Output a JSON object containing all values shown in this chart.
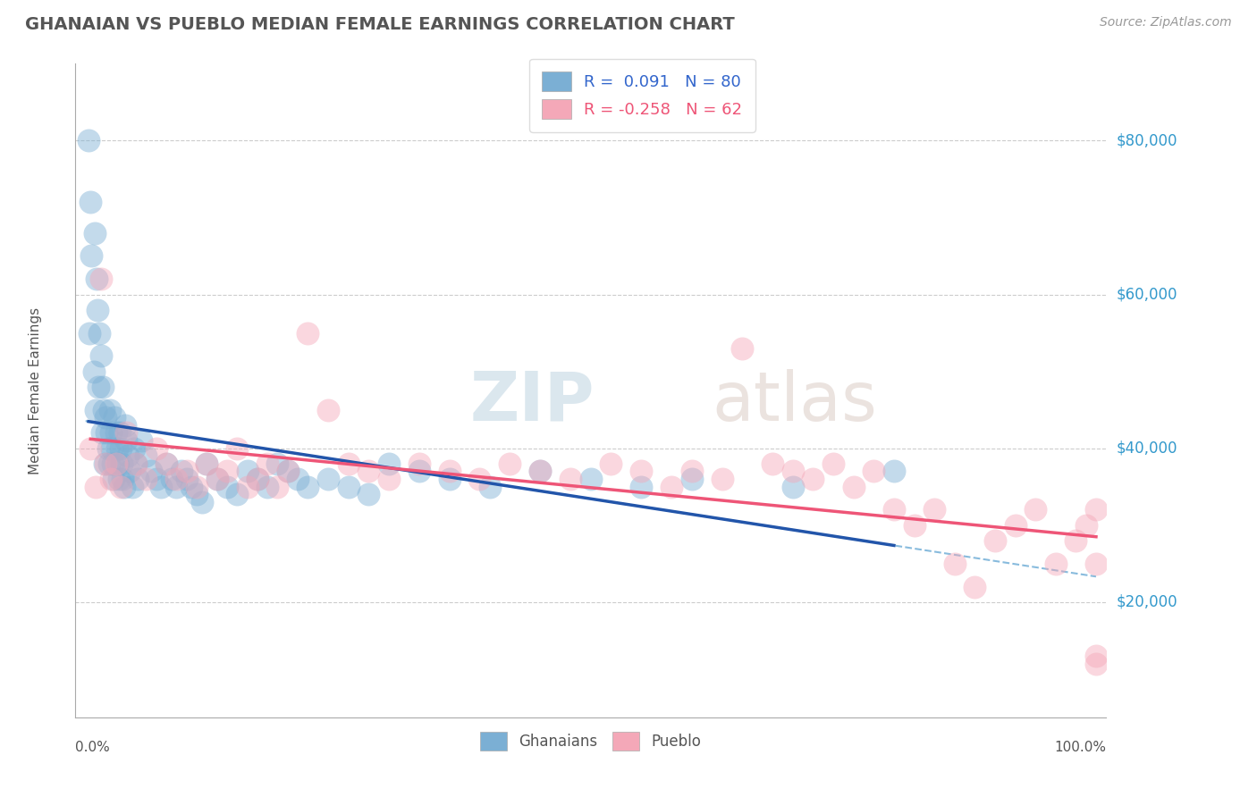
{
  "title": "GHANAIAN VS PUEBLO MEDIAN FEMALE EARNINGS CORRELATION CHART",
  "source": "Source: ZipAtlas.com",
  "ylabel": "Median Female Earnings",
  "y_ticks": [
    20000,
    40000,
    60000,
    80000
  ],
  "y_tick_labels": [
    "$20,000",
    "$40,000",
    "$60,000",
    "$80,000"
  ],
  "y_lim": [
    5000,
    90000
  ],
  "x_lim": [
    0,
    100
  ],
  "ghanaian_R": 0.091,
  "ghanaian_N": 80,
  "pueblo_R": -0.258,
  "pueblo_N": 62,
  "ghanaian_color": "#7BAFD4",
  "pueblo_color": "#F4A8B8",
  "ghanaian_line_color": "#2255AA",
  "pueblo_line_color": "#EE5577",
  "dashed_line_color": "#88BBDD",
  "background_color": "#FFFFFF",
  "title_color": "#555555",
  "ghanaian_x": [
    0.3,
    0.4,
    0.5,
    0.6,
    0.8,
    0.9,
    1.0,
    1.1,
    1.2,
    1.3,
    1.4,
    1.5,
    1.6,
    1.7,
    1.8,
    1.9,
    2.0,
    2.1,
    2.2,
    2.3,
    2.4,
    2.5,
    2.6,
    2.7,
    2.8,
    2.9,
    3.0,
    3.1,
    3.2,
    3.3,
    3.4,
    3.5,
    3.6,
    3.7,
    3.8,
    3.9,
    4.0,
    4.2,
    4.4,
    4.6,
    4.8,
    5.0,
    5.2,
    5.5,
    6.0,
    6.5,
    7.0,
    7.5,
    8.0,
    8.5,
    9.0,
    9.5,
    10.0,
    10.5,
    11.0,
    11.5,
    12.0,
    13.0,
    14.0,
    15.0,
    16.0,
    17.0,
    18.0,
    19.0,
    20.0,
    21.0,
    22.0,
    24.0,
    26.0,
    28.0,
    30.0,
    33.0,
    36.0,
    40.0,
    45.0,
    50.0,
    55.0,
    60.0,
    70.0,
    80.0
  ],
  "ghanaian_y": [
    80000,
    55000,
    72000,
    65000,
    50000,
    68000,
    45000,
    62000,
    58000,
    48000,
    55000,
    52000,
    42000,
    48000,
    45000,
    38000,
    44000,
    42000,
    40000,
    38000,
    45000,
    42000,
    40000,
    38000,
    36000,
    44000,
    42000,
    40000,
    38000,
    36000,
    42000,
    40000,
    38000,
    36000,
    35000,
    43000,
    41000,
    39000,
    37000,
    35000,
    40000,
    38000,
    36000,
    41000,
    39000,
    37000,
    36000,
    35000,
    38000,
    36000,
    35000,
    37000,
    36000,
    35000,
    34000,
    33000,
    38000,
    36000,
    35000,
    34000,
    37000,
    36000,
    35000,
    38000,
    37000,
    36000,
    35000,
    36000,
    35000,
    34000,
    38000,
    37000,
    36000,
    35000,
    37000,
    36000,
    35000,
    36000,
    35000,
    37000
  ],
  "pueblo_x": [
    0.5,
    1.0,
    1.5,
    2.0,
    2.5,
    3.0,
    3.5,
    4.0,
    5.0,
    6.0,
    7.0,
    8.0,
    9.0,
    10.0,
    11.0,
    12.0,
    13.0,
    14.0,
    15.0,
    16.0,
    17.0,
    18.0,
    19.0,
    20.0,
    22.0,
    24.0,
    26.0,
    28.0,
    30.0,
    33.0,
    36.0,
    39.0,
    42.0,
    45.0,
    48.0,
    52.0,
    55.0,
    58.0,
    60.0,
    63.0,
    65.0,
    68.0,
    70.0,
    72.0,
    74.0,
    76.0,
    78.0,
    80.0,
    82.0,
    84.0,
    86.0,
    88.0,
    90.0,
    92.0,
    94.0,
    96.0,
    98.0,
    99.0,
    100.0,
    100.0,
    100.0,
    100.0
  ],
  "pueblo_y": [
    40000,
    35000,
    62000,
    38000,
    36000,
    38000,
    35000,
    42000,
    38000,
    36000,
    40000,
    38000,
    36000,
    37000,
    35000,
    38000,
    36000,
    37000,
    40000,
    35000,
    36000,
    38000,
    35000,
    37000,
    55000,
    45000,
    38000,
    37000,
    36000,
    38000,
    37000,
    36000,
    38000,
    37000,
    36000,
    38000,
    37000,
    35000,
    37000,
    36000,
    53000,
    38000,
    37000,
    36000,
    38000,
    35000,
    37000,
    32000,
    30000,
    32000,
    25000,
    22000,
    28000,
    30000,
    32000,
    25000,
    28000,
    30000,
    25000,
    12000,
    32000,
    13000
  ]
}
